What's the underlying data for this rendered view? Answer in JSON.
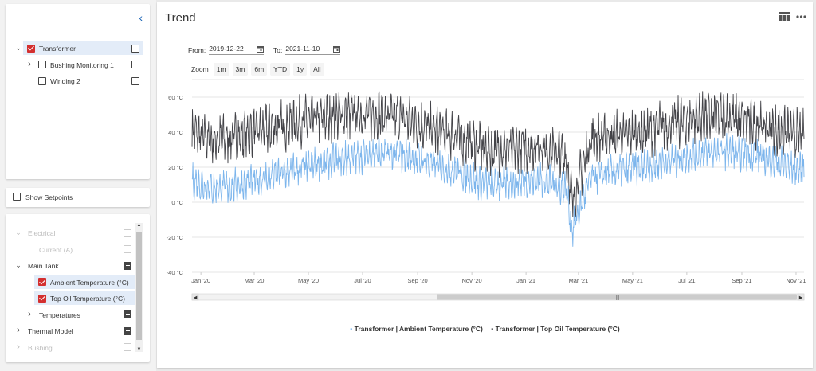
{
  "colors": {
    "ambient": "#7cb5ec",
    "top_oil": "#434348",
    "accent": "#1b64b5",
    "checked": "#d32f2f"
  },
  "tree": {
    "items": [
      {
        "label": "Transformer",
        "level": 0,
        "expander": "open",
        "checked": true,
        "selected": true
      },
      {
        "label": "Bushing Monitoring 1",
        "level": 1,
        "expander": "closed",
        "checked": false
      },
      {
        "label": "Winding 2",
        "level": 1,
        "expander": "none",
        "checked": false
      }
    ]
  },
  "setpoints": {
    "label": "Show Setpoints",
    "checked": false
  },
  "measurements": {
    "items": [
      {
        "label": "Electrical",
        "level": 0,
        "expander": "open",
        "state": "disabled"
      },
      {
        "label": "Current (A)",
        "level": 1,
        "expander": "none",
        "state": "disabled"
      },
      {
        "label": "Main Tank",
        "level": 0,
        "expander": "open",
        "state": "partial"
      },
      {
        "label": "Ambient Temperature (°C)",
        "level": 1,
        "expander": "none",
        "state": "checked"
      },
      {
        "label": "Top Oil Temperature (°C)",
        "level": 1,
        "expander": "none",
        "state": "checked"
      },
      {
        "label": "Temperatures",
        "level": 1,
        "expander": "closed",
        "state": "partial"
      },
      {
        "label": "Thermal Model",
        "level": 0,
        "expander": "closed",
        "state": "partial"
      },
      {
        "label": "Bushing",
        "level": 0,
        "expander": "closed",
        "state": "disabled"
      }
    ]
  },
  "panel": {
    "title": "Trend"
  },
  "range": {
    "from_label": "From:",
    "from_value": "2019-12-22",
    "to_label": "To:",
    "to_value": "2021-11-10"
  },
  "zoom": {
    "label": "Zoom",
    "buttons": [
      "1m",
      "3m",
      "6m",
      "YTD",
      "1y",
      "All"
    ]
  },
  "chart_data": {
    "type": "line",
    "x_range": [
      "2019-12-22",
      "2021-11-10"
    ],
    "ylim": [
      -40,
      70
    ],
    "y_ticks": [
      {
        "value": 60,
        "label": "60 °C"
      },
      {
        "value": 40,
        "label": "40 °C"
      },
      {
        "value": 20,
        "label": "20 °C"
      },
      {
        "value": 0,
        "label": "0 °C"
      },
      {
        "value": -20,
        "label": "-20 °C"
      },
      {
        "value": -40,
        "label": "-40 °C"
      }
    ],
    "x_ticks": [
      {
        "date": "2020-01-01",
        "label": "Jan '20"
      },
      {
        "date": "2020-03-01",
        "label": "Mar '20"
      },
      {
        "date": "2020-05-01",
        "label": "May '20"
      },
      {
        "date": "2020-07-01",
        "label": "Jul '20"
      },
      {
        "date": "2020-09-01",
        "label": "Sep '20"
      },
      {
        "date": "2020-11-01",
        "label": "Nov '20"
      },
      {
        "date": "2021-01-01",
        "label": "Jan '21"
      },
      {
        "date": "2021-03-01",
        "label": "Mar '21"
      },
      {
        "date": "2021-05-01",
        "label": "May '21"
      },
      {
        "date": "2021-07-01",
        "label": "Jul '21"
      },
      {
        "date": "2021-09-01",
        "label": "Sep '21"
      },
      {
        "date": "2021-11-01",
        "label": "Nov '21"
      }
    ],
    "grid": true,
    "legend": "bottom-center",
    "navigator": true,
    "series": [
      {
        "name": "Transformer | Ambient Temperature (°C)",
        "color": "#7cb5ec",
        "x": [
          "2019-12-22",
          "2020-01-15",
          "2020-02-15",
          "2020-03-15",
          "2020-04-15",
          "2020-05-15",
          "2020-06-15",
          "2020-07-15",
          "2020-08-15",
          "2020-09-15",
          "2020-10-15",
          "2020-11-15",
          "2020-12-15",
          "2021-01-15",
          "2021-02-15",
          "2021-02-22",
          "2021-03-15",
          "2021-04-15",
          "2021-05-15",
          "2021-06-15",
          "2021-07-15",
          "2021-08-15",
          "2021-09-15",
          "2021-10-15",
          "2021-11-10"
        ],
        "y": [
          12,
          8,
          10,
          14,
          18,
          22,
          25,
          28,
          27,
          22,
          18,
          10,
          11,
          13,
          8,
          -16,
          14,
          18,
          20,
          24,
          28,
          29,
          27,
          22,
          18
        ]
      },
      {
        "name": "Transformer | Top Oil Temperature (°C)",
        "color": "#434348",
        "x": [
          "2019-12-22",
          "2020-01-15",
          "2020-02-15",
          "2020-03-15",
          "2020-04-15",
          "2020-05-15",
          "2020-06-15",
          "2020-07-15",
          "2020-08-15",
          "2020-09-15",
          "2020-10-15",
          "2020-11-15",
          "2020-12-15",
          "2021-01-15",
          "2021-02-15",
          "2021-02-22",
          "2021-03-15",
          "2021-04-15",
          "2021-05-15",
          "2021-06-15",
          "2021-07-15",
          "2021-08-15",
          "2021-09-15",
          "2021-10-15",
          "2021-11-10"
        ],
        "y": [
          40,
          35,
          38,
          42,
          45,
          48,
          50,
          50,
          48,
          42,
          38,
          30,
          30,
          32,
          26,
          0,
          36,
          38,
          40,
          45,
          48,
          49,
          45,
          40,
          38
        ]
      }
    ]
  }
}
